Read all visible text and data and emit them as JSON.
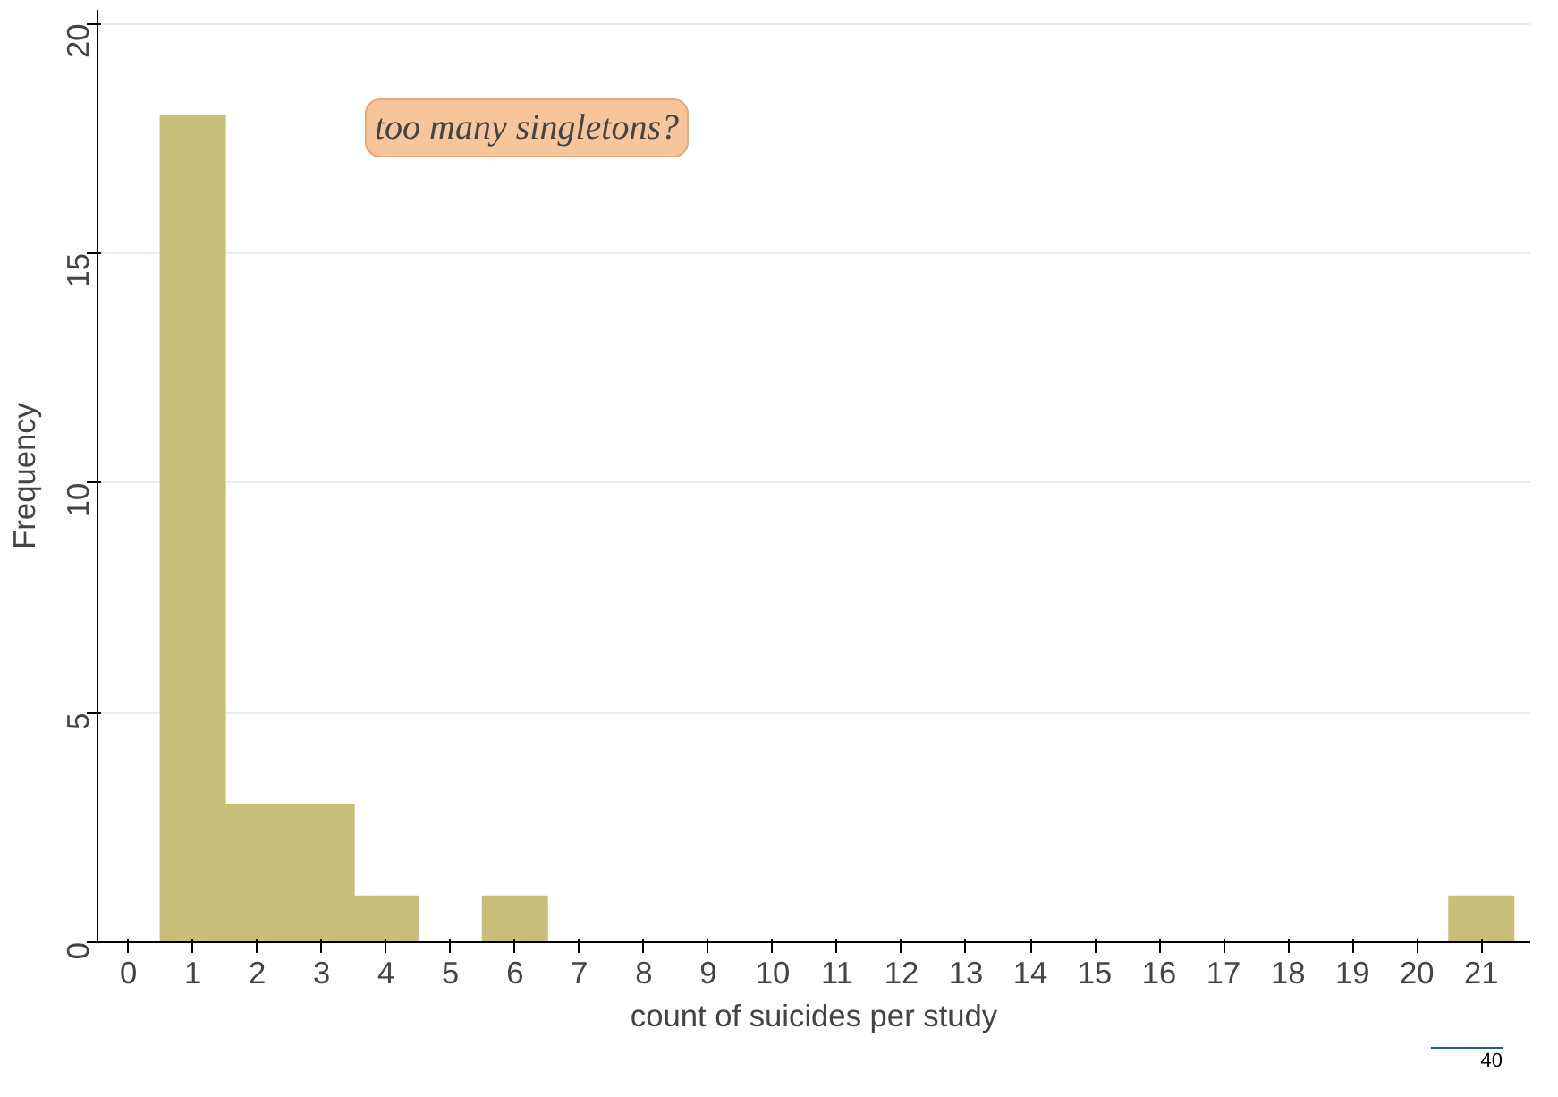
{
  "chart_data": {
    "type": "histogram",
    "xlabel": "count of suicides per study",
    "ylabel": "Frequency",
    "bins": [
      0.5,
      1.5,
      2.5,
      3.5,
      4.5,
      5.5,
      6.5,
      7.5,
      8.5,
      9.5,
      10.5,
      11.5,
      12.5,
      13.5,
      14.5,
      15.5,
      16.5,
      17.5,
      18.5,
      19.5,
      20.5,
      21.5
    ],
    "values": [
      18,
      3,
      3,
      1,
      0,
      1,
      0,
      0,
      0,
      0,
      0,
      0,
      0,
      0,
      0,
      0,
      0,
      0,
      0,
      0,
      1
    ],
    "color": "#c8bf7b",
    "xlim": [
      -0.48,
      21.76
    ],
    "xticks": [
      0,
      1,
      2,
      3,
      4,
      5,
      6,
      7,
      8,
      9,
      10,
      11,
      12,
      13,
      14,
      15,
      16,
      17,
      18,
      19,
      20,
      21
    ],
    "ylim": [
      0,
      20.3
    ],
    "yticks": [
      0,
      5,
      10,
      15,
      20
    ],
    "grid": "y",
    "annotations": [
      "too many singletons?",
      "40"
    ]
  }
}
